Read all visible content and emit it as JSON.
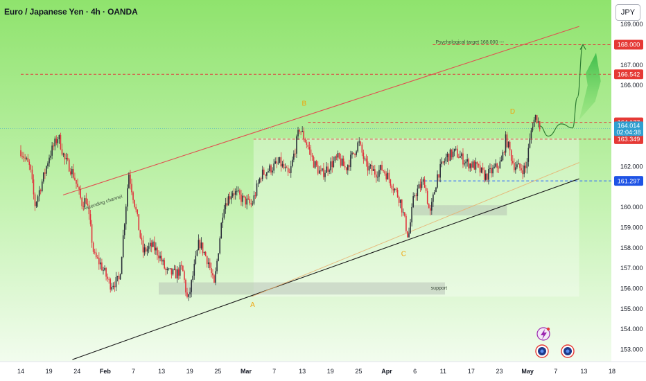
{
  "header": {
    "title": "Euro / Japanese Yen · 4h · OANDA",
    "currency_button": "JPY"
  },
  "colors": {
    "bull": "#2a2e39",
    "bear": "#e0303a",
    "channel_upper": "#e05050",
    "channel_lower": "#1b1b1b",
    "mid_line": "#e8b070",
    "resistance": "#e04040",
    "support_line": "#2962ff",
    "label_red": "#e53935",
    "label_current": "#2f9fd0",
    "label_blue": "#1e53e5",
    "bg_green": "#9ae87a"
  },
  "chart_data": {
    "type": "line",
    "title": "Euro / Japanese Yen · 4h · OANDA",
    "y_unit": "JPY",
    "ylim": [
      152.4,
      170.2
    ],
    "y_ticks": [
      153.0,
      154.0,
      155.0,
      156.0,
      157.0,
      158.0,
      159.0,
      160.0,
      162.0,
      166.0,
      167.0,
      169.0
    ],
    "y_tick_labels": [
      "153.000",
      "154.000",
      "155.000",
      "156.000",
      "157.000",
      "158.000",
      "159.000",
      "160.000",
      "162.000",
      "166.000",
      "167.000",
      "169.000"
    ],
    "x_ticks": [
      {
        "label": "14",
        "bold": false
      },
      {
        "label": "19",
        "bold": false
      },
      {
        "label": "24",
        "bold": false
      },
      {
        "label": "Feb",
        "bold": true
      },
      {
        "label": "7",
        "bold": false
      },
      {
        "label": "13",
        "bold": false
      },
      {
        "label": "19",
        "bold": false
      },
      {
        "label": "25",
        "bold": false
      },
      {
        "label": "Mar",
        "bold": true
      },
      {
        "label": "7",
        "bold": false
      },
      {
        "label": "13",
        "bold": false
      },
      {
        "label": "19",
        "bold": false
      },
      {
        "label": "25",
        "bold": false
      },
      {
        "label": "Apr",
        "bold": true
      },
      {
        "label": "6",
        "bold": false
      },
      {
        "label": "11",
        "bold": false
      },
      {
        "label": "17",
        "bold": false
      },
      {
        "label": "23",
        "bold": false
      },
      {
        "label": "May",
        "bold": true
      },
      {
        "label": "7",
        "bold": false
      },
      {
        "label": "13",
        "bold": false
      },
      {
        "label": "18",
        "bold": false
      }
    ],
    "x_tick_index": [
      0,
      3,
      6,
      9,
      12,
      15,
      18,
      21,
      24,
      27,
      30,
      33,
      36,
      39,
      42,
      45,
      48,
      51,
      54,
      57,
      60,
      63
    ],
    "x_index_max": 63,
    "price_path": [
      [
        0,
        162.8
      ],
      [
        1,
        161.9
      ],
      [
        1.5,
        160.1
      ],
      [
        2.5,
        161.6
      ],
      [
        3,
        162.5
      ],
      [
        4,
        163.5
      ],
      [
        4.7,
        162.3
      ],
      [
        5.2,
        162.0
      ],
      [
        5.7,
        161.5
      ],
      [
        6.5,
        160.2
      ],
      [
        7,
        160.4
      ],
      [
        7.8,
        157.6
      ],
      [
        8.5,
        157.2
      ],
      [
        9.5,
        156.2
      ],
      [
        10.5,
        156.4
      ],
      [
        11.5,
        161.7
      ],
      [
        12.2,
        160.0
      ],
      [
        13,
        157.8
      ],
      [
        14,
        158.1
      ],
      [
        14.7,
        157.7
      ],
      [
        15.5,
        156.8
      ],
      [
        16.5,
        156.7
      ],
      [
        17.2,
        157.0
      ],
      [
        17.8,
        155.3
      ],
      [
        19,
        158.3
      ],
      [
        20,
        157.3
      ],
      [
        20.6,
        156.1
      ],
      [
        21.6,
        160.1
      ],
      [
        22.6,
        160.8
      ],
      [
        23.6,
        160.4
      ],
      [
        24.6,
        160.1
      ],
      [
        25.6,
        161.6
      ],
      [
        26.6,
        161.9
      ],
      [
        27.6,
        162.2
      ],
      [
        28.6,
        161.5
      ],
      [
        29.7,
        163.9
      ],
      [
        30.5,
        163.1
      ],
      [
        31.2,
        162.2
      ],
      [
        32,
        161.6
      ],
      [
        33,
        162.1
      ],
      [
        33.8,
        162.4
      ],
      [
        34.6,
        161.9
      ],
      [
        35.3,
        162.5
      ],
      [
        36,
        163.2
      ],
      [
        36.8,
        162.0
      ],
      [
        37.8,
        161.7
      ],
      [
        38.5,
        161.9
      ],
      [
        39,
        161.6
      ],
      [
        40.4,
        160.4
      ],
      [
        41.3,
        158.5
      ],
      [
        41.9,
        160.6
      ],
      [
        43,
        161.3
      ],
      [
        43.6,
        159.6
      ],
      [
        44.4,
        161.6
      ],
      [
        45.4,
        162.5
      ],
      [
        46.3,
        162.7
      ],
      [
        47.5,
        162.2
      ],
      [
        48.5,
        162.0
      ],
      [
        49.5,
        161.5
      ],
      [
        50.5,
        161.9
      ],
      [
        51.2,
        162.2
      ],
      [
        51.7,
        163.4
      ],
      [
        52.5,
        162.1
      ],
      [
        53.2,
        161.9
      ],
      [
        53.8,
        161.9
      ],
      [
        54.5,
        164.1
      ],
      [
        54.9,
        164.5
      ],
      [
        55.3,
        164.0
      ]
    ],
    "projection_path": [
      [
        55.3,
        164.0
      ],
      [
        56.2,
        163.5
      ],
      [
        57.6,
        164.1
      ],
      [
        58.8,
        163.9
      ],
      [
        59.3,
        165.4
      ],
      [
        59.9,
        168.0
      ]
    ],
    "projection_arrow": [
      [
        59.5,
        164.3
      ],
      [
        61.2,
        165.2
      ],
      [
        61.8,
        166.2
      ],
      [
        61.3,
        167.6
      ],
      [
        60.2,
        166.6
      ],
      [
        60.4,
        166.0
      ]
    ],
    "channel_upper": [
      [
        4.5,
        160.6
      ],
      [
        59.5,
        168.9
      ]
    ],
    "channel_lower": [
      [
        5.5,
        152.5
      ],
      [
        59.5,
        161.4
      ]
    ],
    "channel_mid": [
      [
        24.6,
        155.6
      ],
      [
        59.5,
        162.2
      ]
    ],
    "consolidation_box": {
      "x0": 24.8,
      "x1": 59.5,
      "y0": 155.6,
      "y1": 163.4
    },
    "support_zones": [
      {
        "x0": 14.7,
        "x1": 45.2,
        "y0": 155.7,
        "y1": 156.3
      },
      {
        "x0": 41.8,
        "x1": 51.8,
        "y0": 159.6,
        "y1": 160.1
      }
    ],
    "levels": [
      {
        "price": 168.0,
        "label": "168.000",
        "style": "red",
        "x_from": 43.9
      },
      {
        "price": 166.542,
        "label": "166.542",
        "style": "red",
        "x_from": 0
      },
      {
        "price": 164.177,
        "label": "164.177",
        "style": "red",
        "x_from": 30.6
      },
      {
        "price": 163.349,
        "label": "163.349",
        "style": "red",
        "x_from": 24.8
      },
      {
        "price": 161.297,
        "label": "161.297",
        "style": "blue",
        "x_from": 43.0
      }
    ],
    "current_price": {
      "price": 164.014,
      "label": "164.014",
      "timer": "02:04:38"
    },
    "points": [
      {
        "label": "A",
        "x": 24.7,
        "y": 155.1
      },
      {
        "label": "B",
        "x": 30.2,
        "y": 165.0
      },
      {
        "label": "C",
        "x": 40.8,
        "y": 157.6
      },
      {
        "label": "D",
        "x": 52.4,
        "y": 164.6
      }
    ],
    "annotations": {
      "channel_label": "Ascending channel",
      "support_label": "support",
      "target_label": "Psychological target 168.000 ---"
    }
  }
}
